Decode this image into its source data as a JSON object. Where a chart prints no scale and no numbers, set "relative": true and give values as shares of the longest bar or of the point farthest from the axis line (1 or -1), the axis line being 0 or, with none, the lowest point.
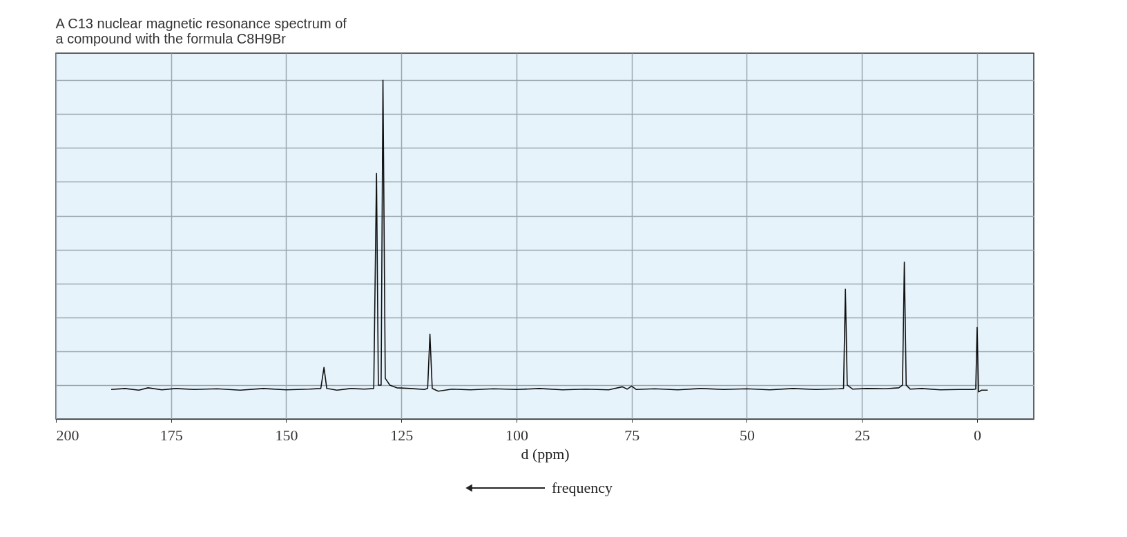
{
  "chart_data": {
    "type": "line",
    "title": "A C13 nuclear magnetic resonance spectrum of\na compound with the formula C8H9Br",
    "xlabel": "d (ppm)",
    "annotations": [
      "frequency"
    ],
    "relative": true,
    "grid": true,
    "marker": "none",
    "line_style": "solid",
    "xlim": [
      200,
      -12.3
    ],
    "xticks": [
      200,
      175,
      150,
      125,
      100,
      75,
      50,
      25,
      0
    ],
    "tick_labels": "x",
    "x": [
      188,
      185,
      182,
      180,
      177,
      174,
      170,
      165,
      160,
      155,
      150,
      145,
      142.5,
      141.8,
      141.2,
      139,
      136,
      133,
      131,
      130.4,
      130,
      129.4,
      129,
      128.5,
      127.5,
      126,
      123,
      120,
      119.3,
      118.8,
      118.3,
      117,
      114,
      110,
      105,
      100,
      95,
      90,
      85,
      80,
      77,
      76,
      75,
      74,
      70,
      65,
      60,
      55,
      50,
      45,
      40,
      35,
      30,
      29,
      28.6,
      28.2,
      27,
      24,
      20,
      17,
      16.2,
      15.8,
      15.4,
      14.5,
      12,
      8,
      4,
      1,
      0.3,
      0,
      -0.3,
      -1,
      -2.3
    ],
    "series": [
      {
        "color": "#111111",
        "values": [
          0.087,
          0.09,
          0.085,
          0.092,
          0.086,
          0.09,
          0.087,
          0.089,
          0.085,
          0.09,
          0.086,
          0.088,
          0.09,
          0.152,
          0.09,
          0.085,
          0.09,
          0.088,
          0.09,
          0.725,
          0.1,
          0.1,
          1.0,
          0.12,
          0.1,
          0.092,
          0.09,
          0.087,
          0.09,
          0.25,
          0.09,
          0.082,
          0.088,
          0.086,
          0.089,
          0.087,
          0.09,
          0.086,
          0.088,
          0.086,
          0.095,
          0.088,
          0.097,
          0.087,
          0.089,
          0.086,
          0.09,
          0.087,
          0.089,
          0.086,
          0.09,
          0.087,
          0.089,
          0.09,
          0.383,
          0.1,
          0.088,
          0.09,
          0.089,
          0.092,
          0.1,
          0.463,
          0.1,
          0.088,
          0.09,
          0.086,
          0.087,
          0.087,
          0.088,
          0.27,
          0.08,
          0.085,
          0.085
        ]
      }
    ]
  }
}
